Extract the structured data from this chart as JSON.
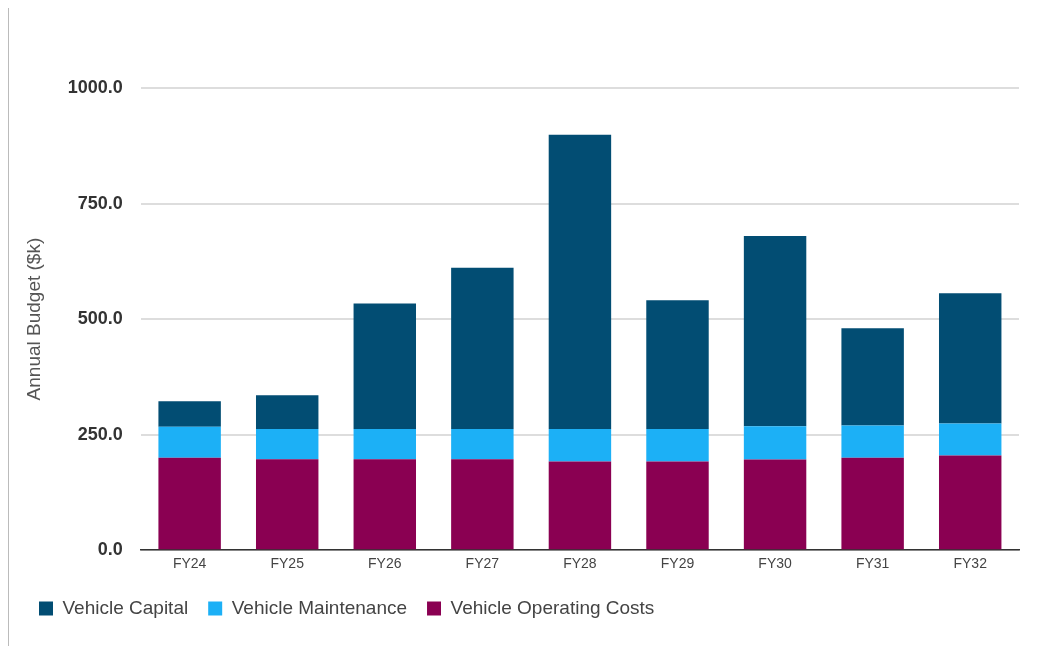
{
  "chart_data": {
    "type": "bar",
    "stacked": true,
    "ylabel": "Annual Budget ($k)",
    "categories": [
      "FY24",
      "FY25",
      "FY26",
      "FY27",
      "FY28",
      "FY29",
      "FY30",
      "FY31",
      "FY32"
    ],
    "series": [
      {
        "name": "Vehicle Operating Costs",
        "color": "#8a0052",
        "values": [
          200,
          197,
          197,
          197,
          192,
          192,
          196,
          200,
          205
        ]
      },
      {
        "name": "Vehicle Maintenance",
        "color": "#1cb0f6",
        "values": [
          67,
          65,
          65,
          65,
          70,
          70,
          72,
          70,
          69
        ]
      },
      {
        "name": "Vehicle Capital",
        "color": "#024d73",
        "values": [
          55,
          73,
          272,
          349,
          637,
          279,
          412,
          210,
          282
        ]
      }
    ],
    "ylim": [
      0,
      1000
    ],
    "yticks": [
      {
        "value": 0,
        "label": "0.0"
      },
      {
        "value": 250,
        "label": "250.0"
      },
      {
        "value": 500,
        "label": "500.0"
      },
      {
        "value": 750,
        "label": "750.0"
      },
      {
        "value": 1000,
        "label": "1000.0"
      }
    ],
    "grid": "y",
    "legend": "bottom"
  }
}
